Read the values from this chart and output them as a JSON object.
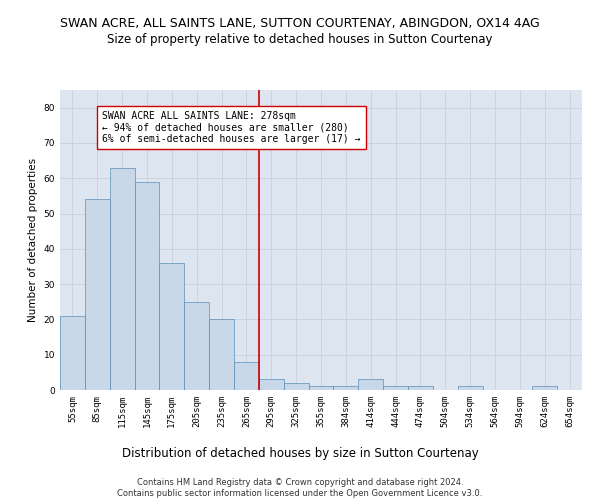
{
  "title": "SWAN ACRE, ALL SAINTS LANE, SUTTON COURTENAY, ABINGDON, OX14 4AG",
  "subtitle": "Size of property relative to detached houses in Sutton Courtenay",
  "xlabel": "Distribution of detached houses by size in Sutton Courtenay",
  "ylabel": "Number of detached properties",
  "categories": [
    "55sqm",
    "85sqm",
    "115sqm",
    "145sqm",
    "175sqm",
    "205sqm",
    "235sqm",
    "265sqm",
    "295sqm",
    "325sqm",
    "355sqm",
    "384sqm",
    "414sqm",
    "444sqm",
    "474sqm",
    "504sqm",
    "534sqm",
    "564sqm",
    "594sqm",
    "624sqm",
    "654sqm"
  ],
  "values": [
    21,
    54,
    63,
    59,
    36,
    25,
    20,
    8,
    3,
    2,
    1,
    1,
    3,
    1,
    1,
    0,
    1,
    0,
    0,
    1,
    0
  ],
  "bar_color": "#c8d8e8",
  "bar_edge_color": "#5b8db8",
  "vline_x_index": 7.5,
  "vline_color": "#cc0000",
  "annotation_text": "SWAN ACRE ALL SAINTS LANE: 278sqm\n← 94% of detached houses are smaller (280)\n6% of semi-detached houses are larger (17) →",
  "annotation_box_color": "#ffffff",
  "annotation_box_edge": "#cc0000",
  "ylim": [
    0,
    85
  ],
  "yticks": [
    0,
    10,
    20,
    30,
    40,
    50,
    60,
    70,
    80
  ],
  "grid_color": "#c8d0dc",
  "background_color": "#dde6f0",
  "footer1": "Contains HM Land Registry data © Crown copyright and database right 2024.",
  "footer2": "Contains public sector information licensed under the Open Government Licence v3.0.",
  "title_fontsize": 9,
  "subtitle_fontsize": 8.5,
  "xlabel_fontsize": 8.5,
  "ylabel_fontsize": 7.5,
  "tick_fontsize": 6.5,
  "annotation_fontsize": 7,
  "footer_fontsize": 6
}
